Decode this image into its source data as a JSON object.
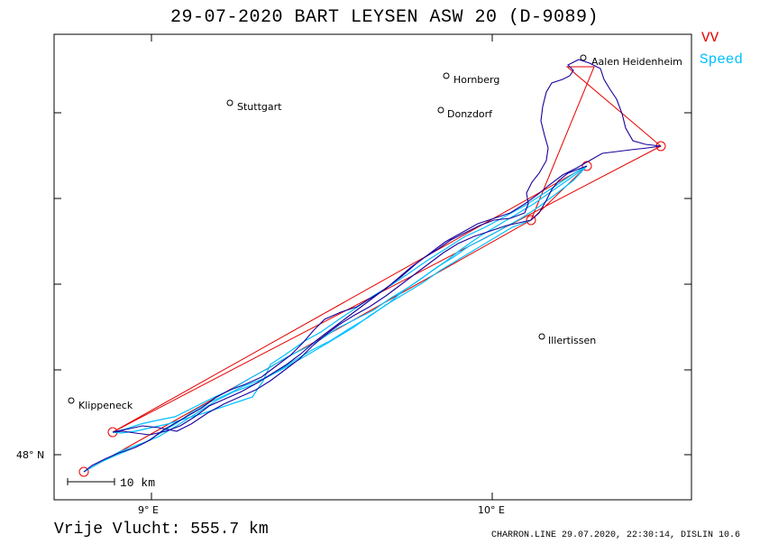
{
  "header": {
    "title": "29-07-2020   BART LEYSEN   ASW 20 (D-9089)"
  },
  "legend": {
    "vv_label": "VV",
    "vv_color": "#e60000",
    "speed_label": "Speed",
    "speed_color": "#00c0ff"
  },
  "map": {
    "track_color": "#1a0099",
    "axis_labels": {
      "lat_48": "48° N",
      "lon_9": "9° E",
      "lon_10": "10° E"
    },
    "scale_bar_label": "10 km",
    "places": [
      {
        "name": "Aalen Heidenheim"
      },
      {
        "name": "Hornberg"
      },
      {
        "name": "Stuttgart"
      },
      {
        "name": "Donzdorf"
      },
      {
        "name": "Illertissen"
      },
      {
        "name": "Klippeneck"
      }
    ]
  },
  "summary": {
    "distance_text": "Vrije Vlucht:  555.7 km"
  },
  "footer": {
    "info": "CHARRON.LINE 29.07.2020, 22:30:14, DISLIN 10.6"
  }
}
